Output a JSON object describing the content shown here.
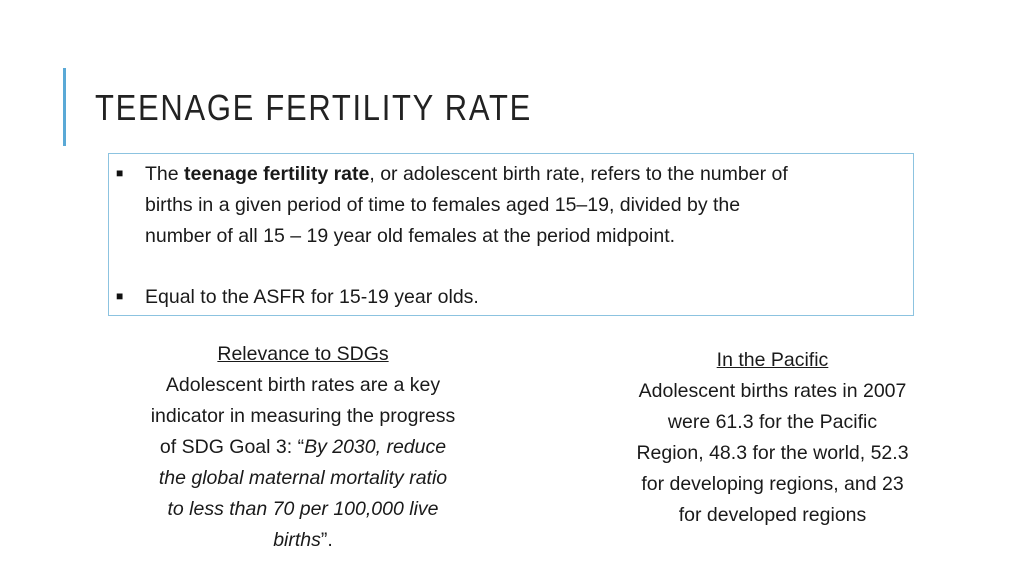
{
  "title": "TEENAGE FERTILITY RATE",
  "accent_color": "#5aa9d6",
  "box_border_color": "#8cc3e0",
  "definition": {
    "bullet_icon": "square-bullet",
    "prefix": "The ",
    "term": "teenage fertility rate",
    "line1_rest": ", or adolescent birth rate, refers to the number of",
    "line2": "births in a given period of time to females aged 15–19, divided by the",
    "line3": "number of all 15 – 19 year old females at the period midpoint."
  },
  "asfr": {
    "bullet_icon": "square-bullet",
    "text": "Equal to the ASFR for 15-19 year olds."
  },
  "sdg": {
    "heading": "Relevance to SDGs",
    "line1": "Adolescent birth rates are a key",
    "line2": "indicator in measuring the progress",
    "line3_plain": "of SDG Goal 3: “",
    "line3_italic": "By 2030, reduce",
    "line4": "the global maternal mortality ratio",
    "line5": "to less than 70 per 100,000 live",
    "line6_italic": "births",
    "line6_end": "”."
  },
  "pacific": {
    "heading": "In the Pacific",
    "line1": "Adolescent births rates in 2007",
    "line2": "were 61.3 for the Pacific",
    "line3": "Region, 48.3 for the world, 52.3",
    "line4": "for developing regions, and 23",
    "line5": "for developed regions"
  }
}
